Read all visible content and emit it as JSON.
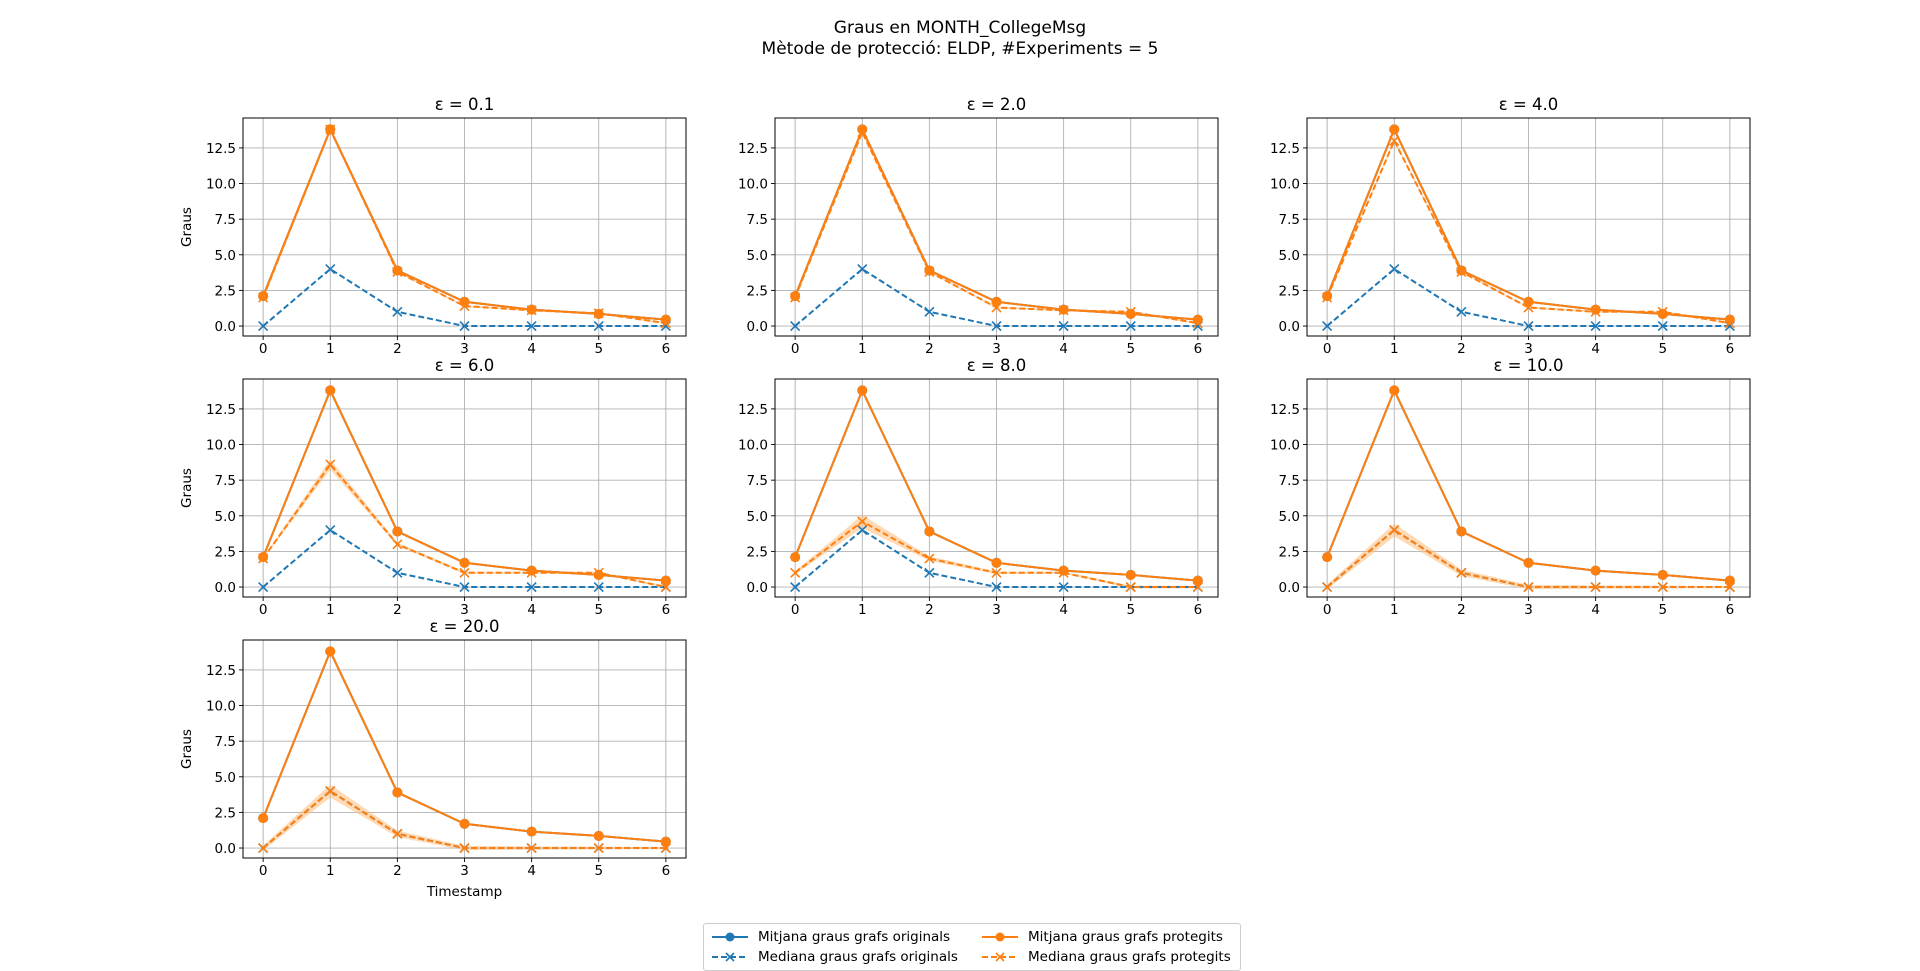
{
  "figure": {
    "title_line1": "Graus en MONTH_CollegeMsg",
    "title_line2": "Mètode de protecció: ELDP, #Experiments = 5"
  },
  "colors": {
    "original": "#1f77b4",
    "protected": "#ff7f0e",
    "band": "#ffbb78",
    "grid": "#b0b0b0"
  },
  "legend": {
    "items": [
      {
        "label": "Mitjana graus grafs originals",
        "series": "orig_mean"
      },
      {
        "label": "Mediana graus grafs originals",
        "series": "orig_median"
      },
      {
        "label": "Mitjana graus grafs protegits",
        "series": "prot_mean"
      },
      {
        "label": "Mediana graus grafs protegits",
        "series": "prot_median"
      }
    ]
  },
  "chart_data": [
    {
      "type": "line",
      "title": "ε = 0.1",
      "ylabel": "Graus",
      "xlabel": "",
      "x": [
        0,
        1,
        2,
        3,
        4,
        5,
        6
      ],
      "xticks": [
        "0",
        "1",
        "2",
        "3",
        "4",
        "5",
        "6"
      ],
      "yticks": [
        "0.0",
        "2.5",
        "5.0",
        "7.5",
        "10.0",
        "12.5"
      ],
      "ylim": [
        -0.7,
        14.6
      ],
      "grid": true,
      "series": [
        {
          "name": "Mitjana graus grafs originals",
          "key": "orig_mean",
          "values": [
            2.1,
            13.8,
            3.9,
            1.7,
            1.15,
            0.85,
            0.45
          ]
        },
        {
          "name": "Mediana graus grafs originals",
          "key": "orig_median",
          "values": [
            0,
            4,
            1,
            0,
            0,
            0,
            0
          ]
        },
        {
          "name": "Mitjana graus grafs protegits",
          "key": "prot_mean",
          "values": [
            2.1,
            13.8,
            3.9,
            1.7,
            1.15,
            0.85,
            0.45
          ]
        },
        {
          "name": "Mediana graus grafs protegits",
          "key": "prot_median",
          "values": [
            2,
            13.8,
            3.8,
            1.4,
            1.1,
            0.9,
            0.2
          ]
        }
      ]
    },
    {
      "type": "line",
      "title": "ε = 2.0",
      "ylabel": "",
      "xlabel": "",
      "x": [
        0,
        1,
        2,
        3,
        4,
        5,
        6
      ],
      "xticks": [
        "0",
        "1",
        "2",
        "3",
        "4",
        "5",
        "6"
      ],
      "yticks": [
        "0.0",
        "2.5",
        "5.0",
        "7.5",
        "10.0",
        "12.5"
      ],
      "ylim": [
        -0.7,
        14.6
      ],
      "grid": true,
      "series": [
        {
          "name": "Mitjana graus grafs originals",
          "key": "orig_mean",
          "values": [
            2.1,
            13.8,
            3.9,
            1.7,
            1.15,
            0.85,
            0.45
          ]
        },
        {
          "name": "Mediana graus grafs originals",
          "key": "orig_median",
          "values": [
            0,
            4,
            1,
            0,
            0,
            0,
            0
          ]
        },
        {
          "name": "Mitjana graus grafs protegits",
          "key": "prot_mean",
          "values": [
            2.1,
            13.8,
            3.9,
            1.7,
            1.15,
            0.85,
            0.45
          ]
        },
        {
          "name": "Mediana graus grafs protegits",
          "key": "prot_median",
          "values": [
            2,
            13.6,
            3.8,
            1.3,
            1.1,
            1,
            0.2
          ]
        }
      ]
    },
    {
      "type": "line",
      "title": "ε = 4.0",
      "ylabel": "",
      "xlabel": "",
      "x": [
        0,
        1,
        2,
        3,
        4,
        5,
        6
      ],
      "xticks": [
        "0",
        "1",
        "2",
        "3",
        "4",
        "5",
        "6"
      ],
      "yticks": [
        "0.0",
        "2.5",
        "5.0",
        "7.5",
        "10.0",
        "12.5"
      ],
      "ylim": [
        -0.7,
        14.6
      ],
      "grid": true,
      "series": [
        {
          "name": "Mitjana graus grafs originals",
          "key": "orig_mean",
          "values": [
            2.1,
            13.8,
            3.9,
            1.7,
            1.15,
            0.85,
            0.45
          ]
        },
        {
          "name": "Mediana graus grafs originals",
          "key": "orig_median",
          "values": [
            0,
            4,
            1,
            0,
            0,
            0,
            0
          ]
        },
        {
          "name": "Mitjana graus grafs protegits",
          "key": "prot_mean",
          "values": [
            2.1,
            13.8,
            3.9,
            1.7,
            1.15,
            0.85,
            0.45
          ]
        },
        {
          "name": "Mediana graus grafs protegits",
          "key": "prot_median",
          "values": [
            2,
            13,
            3.8,
            1.3,
            1,
            1,
            0.2
          ]
        }
      ]
    },
    {
      "type": "line",
      "title": "ε = 6.0",
      "ylabel": "Graus",
      "xlabel": "",
      "x": [
        0,
        1,
        2,
        3,
        4,
        5,
        6
      ],
      "xticks": [
        "0",
        "1",
        "2",
        "3",
        "4",
        "5",
        "6"
      ],
      "yticks": [
        "0.0",
        "2.5",
        "5.0",
        "7.5",
        "10.0",
        "12.5"
      ],
      "ylim": [
        -0.7,
        14.6
      ],
      "grid": true,
      "series": [
        {
          "name": "Mitjana graus grafs originals",
          "key": "orig_mean",
          "values": [
            2.1,
            13.8,
            3.9,
            1.7,
            1.15,
            0.85,
            0.45
          ]
        },
        {
          "name": "Mediana graus grafs originals",
          "key": "orig_median",
          "values": [
            0,
            4,
            1,
            0,
            0,
            0,
            0
          ]
        },
        {
          "name": "Mitjana graus grafs protegits",
          "key": "prot_mean",
          "values": [
            2.1,
            13.8,
            3.9,
            1.7,
            1.15,
            0.85,
            0.45
          ]
        },
        {
          "name": "Mediana graus grafs protegits",
          "key": "prot_median",
          "values": [
            2,
            8.6,
            3,
            1,
            1,
            1,
            0
          ]
        }
      ]
    },
    {
      "type": "line",
      "title": "ε = 8.0",
      "ylabel": "",
      "xlabel": "",
      "x": [
        0,
        1,
        2,
        3,
        4,
        5,
        6
      ],
      "xticks": [
        "0",
        "1",
        "2",
        "3",
        "4",
        "5",
        "6"
      ],
      "yticks": [
        "0.0",
        "2.5",
        "5.0",
        "7.5",
        "10.0",
        "12.5"
      ],
      "ylim": [
        -0.7,
        14.6
      ],
      "grid": true,
      "series": [
        {
          "name": "Mitjana graus grafs originals",
          "key": "orig_mean",
          "values": [
            2.1,
            13.8,
            3.9,
            1.7,
            1.15,
            0.85,
            0.45
          ]
        },
        {
          "name": "Mediana graus grafs originals",
          "key": "orig_median",
          "values": [
            0,
            4,
            1,
            0,
            0,
            0,
            0
          ]
        },
        {
          "name": "Mitjana graus grafs protegits",
          "key": "prot_mean",
          "values": [
            2.1,
            13.8,
            3.9,
            1.7,
            1.15,
            0.85,
            0.45
          ]
        },
        {
          "name": "Mediana graus grafs protegits",
          "key": "prot_median",
          "values": [
            1,
            4.6,
            2,
            1,
            1,
            0,
            0
          ]
        }
      ]
    },
    {
      "type": "line",
      "title": "ε = 10.0",
      "ylabel": "",
      "xlabel": "",
      "x": [
        0,
        1,
        2,
        3,
        4,
        5,
        6
      ],
      "xticks": [
        "0",
        "1",
        "2",
        "3",
        "4",
        "5",
        "6"
      ],
      "yticks": [
        "0.0",
        "2.5",
        "5.0",
        "7.5",
        "10.0",
        "12.5"
      ],
      "ylim": [
        -0.7,
        14.6
      ],
      "grid": true,
      "series": [
        {
          "name": "Mitjana graus grafs originals",
          "key": "orig_mean",
          "values": [
            2.1,
            13.8,
            3.9,
            1.7,
            1.15,
            0.85,
            0.45
          ]
        },
        {
          "name": "Mediana graus grafs originals",
          "key": "orig_median",
          "values": [
            0,
            4,
            1,
            0,
            0,
            0,
            0
          ]
        },
        {
          "name": "Mitjana graus grafs protegits",
          "key": "prot_mean",
          "values": [
            2.1,
            13.8,
            3.9,
            1.7,
            1.15,
            0.85,
            0.45
          ]
        },
        {
          "name": "Mediana graus grafs protegits",
          "key": "prot_median",
          "values": [
            0,
            4,
            1,
            0,
            0,
            0,
            0
          ]
        }
      ]
    },
    {
      "type": "line",
      "title": "ε = 20.0",
      "ylabel": "Graus",
      "xlabel": "Timestamp",
      "x": [
        0,
        1,
        2,
        3,
        4,
        5,
        6
      ],
      "xticks": [
        "0",
        "1",
        "2",
        "3",
        "4",
        "5",
        "6"
      ],
      "yticks": [
        "0.0",
        "2.5",
        "5.0",
        "7.5",
        "10.0",
        "12.5"
      ],
      "ylim": [
        -0.7,
        14.6
      ],
      "grid": true,
      "series": [
        {
          "name": "Mitjana graus grafs originals",
          "key": "orig_mean",
          "values": [
            2.1,
            13.8,
            3.9,
            1.7,
            1.15,
            0.85,
            0.45
          ]
        },
        {
          "name": "Mediana graus grafs originals",
          "key": "orig_median",
          "values": [
            0,
            4,
            1,
            0,
            0,
            0,
            0
          ]
        },
        {
          "name": "Mitjana graus grafs protegits",
          "key": "prot_mean",
          "values": [
            2.1,
            13.8,
            3.9,
            1.7,
            1.15,
            0.85,
            0.45
          ]
        },
        {
          "name": "Mediana graus grafs protegits",
          "key": "prot_median",
          "values": [
            0,
            4,
            1,
            0,
            0,
            0,
            0
          ]
        }
      ]
    }
  ]
}
